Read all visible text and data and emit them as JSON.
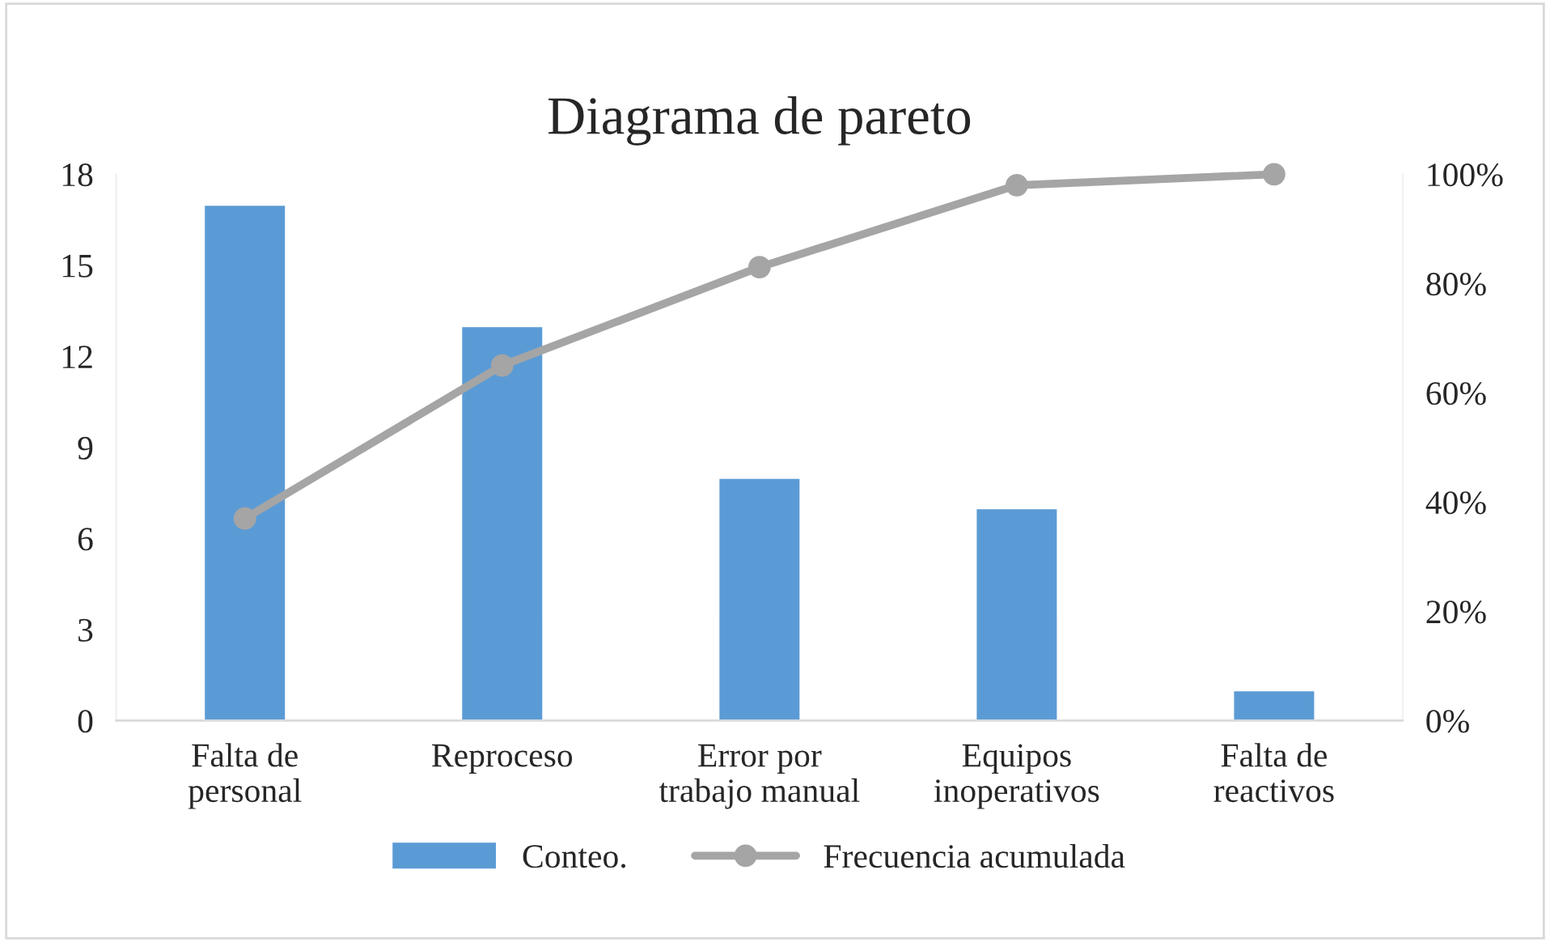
{
  "chart_data": {
    "type": "bar",
    "title": "Diagrama de pareto",
    "categories": [
      "Falta de\npersonal",
      "Reproceso",
      "Error por\ntrabajo manual",
      "Equipos\ninoperativos",
      "Falta de\nreactivos"
    ],
    "series": [
      {
        "name": "Conteo.",
        "color": "#5b9bd5",
        "values": [
          17,
          13,
          8,
          7,
          1
        ]
      },
      {
        "name": "Frecuencia acumulada",
        "type": "line",
        "axis": "y2",
        "color": "#a5a5a5",
        "marker": "circle",
        "values": [
          37,
          65,
          83,
          98,
          100
        ]
      }
    ],
    "ylim": [
      0,
      18
    ],
    "yticks": [
      0,
      3,
      6,
      9,
      12,
      15,
      18
    ],
    "y2lim": [
      0,
      100
    ],
    "y2ticks": [
      {
        "value": 0,
        "label": "0%"
      },
      {
        "value": 20,
        "label": "20%"
      },
      {
        "value": 40,
        "label": "40%"
      },
      {
        "value": 60,
        "label": "60%"
      },
      {
        "value": 80,
        "label": "80%"
      },
      {
        "value": 100,
        "label": "100%"
      }
    ],
    "grid": false,
    "legend": "bottom"
  }
}
